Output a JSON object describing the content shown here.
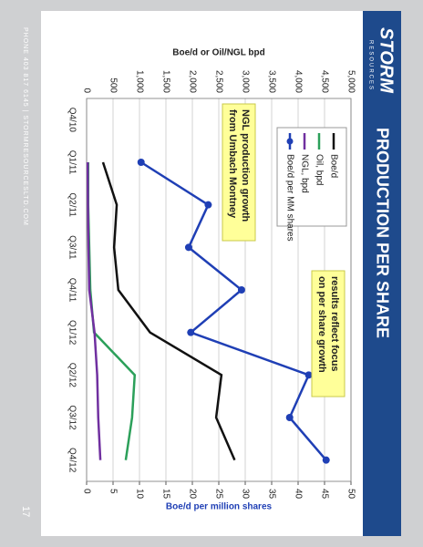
{
  "slide": {
    "title": "PRODUCTION PER SHARE",
    "logo": "STORM",
    "logo_sub": "RESOURCES",
    "footer": "PHONE 403 817 6145 | STORMRESOURCESLTD.COM",
    "page_number": "17"
  },
  "chart_data": {
    "type": "line",
    "y_label": "Boe/d or Oil/NGL bpd",
    "y2_label": "Boe/d per million shares",
    "categories": [
      "Q4/10",
      "Q1/11",
      "Q2/11",
      "Q3/11",
      "Q4/11",
      "Q1/12",
      "Q2/12",
      "Q3/12",
      "Q4/12"
    ],
    "ylim": [
      0,
      5000
    ],
    "yticks": [
      0,
      500,
      {
        "value": 1000,
        "label": "1,000"
      },
      {
        "value": 1500,
        "label": "1,500"
      },
      {
        "value": 2000,
        "label": "2,000"
      },
      {
        "value": 2500,
        "label": "2,500"
      },
      {
        "value": 3000,
        "label": "3,000"
      },
      {
        "value": 3500,
        "label": "3,500"
      },
      {
        "value": 4000,
        "label": "4,000"
      },
      {
        "value": 4500,
        "label": "4,500"
      },
      {
        "value": 5000,
        "label": "5,000"
      }
    ],
    "y2lim": [
      0,
      50
    ],
    "y2ticks": [
      0,
      5,
      10,
      15,
      20,
      25,
      30,
      35,
      40,
      45,
      50
    ],
    "grid": true,
    "legend": "upper left",
    "series": [
      {
        "name": "Boe/d",
        "color": "#111111",
        "values": [
          null,
          310,
          570,
          520,
          600,
          1200,
          2550,
          2450,
          2800
        ]
      },
      {
        "name": "Oil, bpd",
        "color": "#2ca05a",
        "values": [
          null,
          30,
          30,
          50,
          70,
          140,
          910,
          860,
          740
        ]
      },
      {
        "name": "NGL, bpd",
        "color": "#7030a0",
        "values": [
          null,
          20,
          25,
          35,
          50,
          150,
          200,
          220,
          260
        ]
      },
      {
        "name": "Boe/d per MM shares",
        "color": "#1f3fb5",
        "axis": "y2",
        "marker": true,
        "values": [
          null,
          10.3,
          23,
          19.3,
          29.3,
          19.7,
          42,
          38.4,
          45.3
        ]
      }
    ],
    "annotations": [
      {
        "text": [
          "results reflect focus",
          "on per share growth"
        ]
      },
      {
        "text": [
          "NGL production growth",
          "from Umbach Montney"
        ]
      }
    ]
  }
}
